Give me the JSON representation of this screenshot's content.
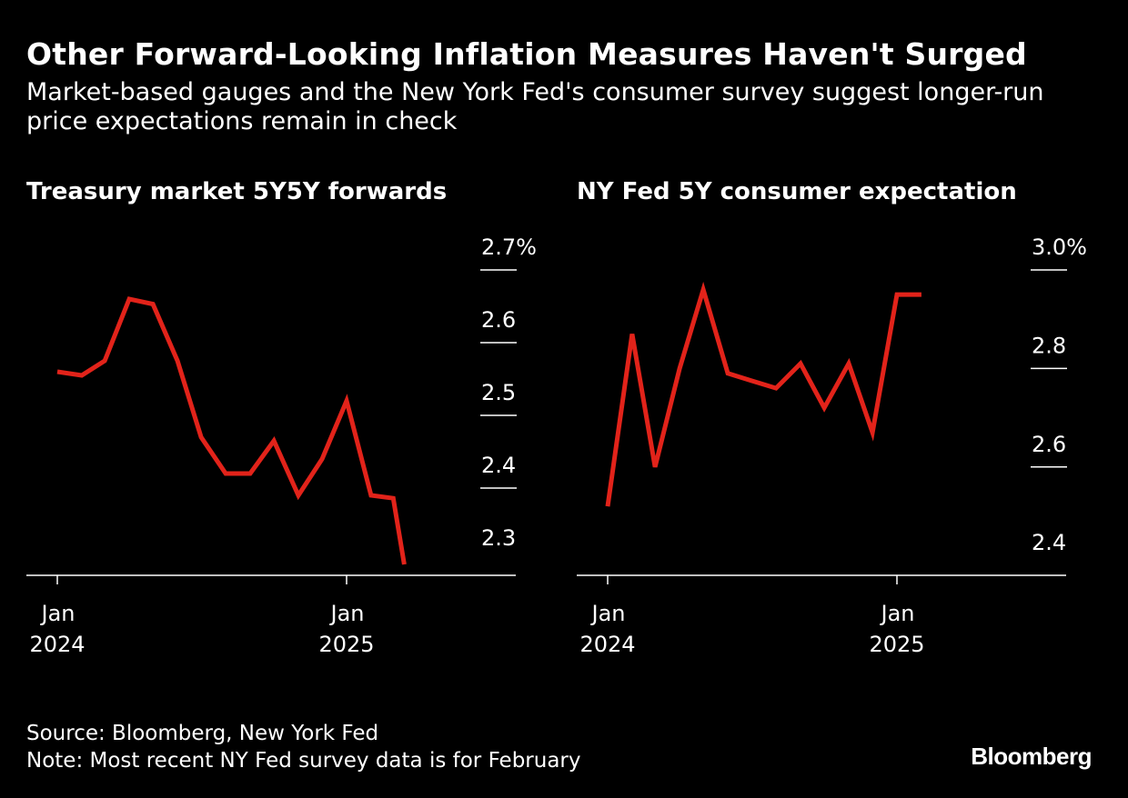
{
  "header": {
    "title": "Other Forward-Looking Inflation Measures Haven't Surged",
    "subtitle": "Market-based gauges and the New York Fed's consumer survey suggest longer-run price expectations remain in check"
  },
  "footer": {
    "source": "Source: Bloomberg, New York Fed",
    "note": "Note: Most recent NY Fed survey data is for February",
    "logo": "Bloomberg"
  },
  "colors": {
    "background": "#000000",
    "line": "#e2231a",
    "text": "#ffffff",
    "axis": "#ffffff"
  },
  "chart_data": [
    {
      "type": "line",
      "title": "Treasury market 5Y5Y forwards",
      "xlabel": "",
      "ylabel": "",
      "ylim": [
        2.28,
        2.7
      ],
      "y_ticks": [
        2.3,
        2.4,
        2.5,
        2.6,
        2.7
      ],
      "y_tick_labels": [
        "2.3",
        "2.4",
        "2.5",
        "2.6",
        "2.7%"
      ],
      "xlim": [
        "2023-12-01",
        "2025-05-15"
      ],
      "x_ticks": [
        {
          "date": "2024-01-01",
          "line1": "Jan",
          "line2": "2024"
        },
        {
          "date": "2025-01-01",
          "line1": "Jan",
          "line2": "2025"
        }
      ],
      "grid": false,
      "series": [
        {
          "x": [
            "2024-01-01",
            "2024-02-01",
            "2024-03-01",
            "2024-04-01",
            "2024-05-01",
            "2024-06-01",
            "2024-07-01",
            "2024-08-01",
            "2024-09-01",
            "2024-10-01",
            "2024-11-01",
            "2024-12-01",
            "2025-01-01",
            "2025-02-01",
            "2025-03-01",
            "2025-03-15"
          ],
          "y": [
            2.56,
            2.555,
            2.575,
            2.66,
            2.653,
            2.575,
            2.47,
            2.42,
            2.42,
            2.465,
            2.39,
            2.44,
            2.52,
            2.39,
            2.386,
            2.295
          ]
        }
      ]
    },
    {
      "type": "line",
      "title": "NY Fed 5Y consumer expectation",
      "xlabel": "",
      "ylabel": "",
      "ylim": [
        2.38,
        3.0
      ],
      "y_ticks": [
        2.4,
        2.6,
        2.8,
        3.0
      ],
      "y_tick_labels": [
        "2.4",
        "2.6",
        "2.8",
        "3.0%"
      ],
      "xlim": [
        "2023-12-01",
        "2025-05-15"
      ],
      "x_ticks": [
        {
          "date": "2024-01-01",
          "line1": "Jan",
          "line2": "2024"
        },
        {
          "date": "2025-01-01",
          "line1": "Jan",
          "line2": "2025"
        }
      ],
      "grid": false,
      "series": [
        {
          "x": [
            "2024-01-01",
            "2024-02-01",
            "2024-03-01",
            "2024-04-01",
            "2024-05-01",
            "2024-06-01",
            "2024-07-01",
            "2024-08-01",
            "2024-09-01",
            "2024-10-01",
            "2024-11-01",
            "2024-12-01",
            "2025-01-01",
            "2025-02-01"
          ],
          "y": [
            2.52,
            2.87,
            2.6,
            2.8,
            2.96,
            2.79,
            2.775,
            2.76,
            2.81,
            2.72,
            2.81,
            2.67,
            2.95,
            2.95
          ]
        }
      ]
    }
  ]
}
